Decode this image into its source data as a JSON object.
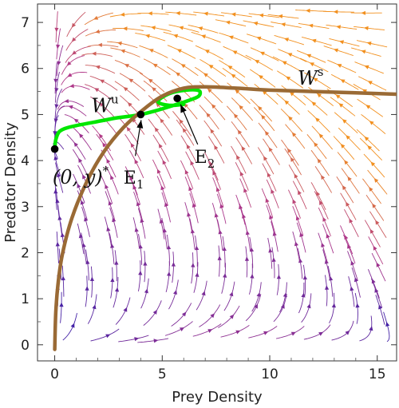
{
  "chart_data": {
    "type": "stream",
    "xlabel": "Prey Density",
    "ylabel": "Predator Density",
    "xlim": [
      -0.8,
      15.9
    ],
    "ylim": [
      -0.35,
      7.4
    ],
    "x_ticks": [
      0,
      5,
      10,
      15
    ],
    "y_ticks": [
      0,
      1,
      2,
      3,
      4,
      5,
      6,
      7
    ],
    "frame": true,
    "grid": false,
    "colors": {
      "stream_slow": "#3a1fa8",
      "stream_mid": "#b0388a",
      "stream_fast": "#f2901f",
      "unstable_manifold": "#00e600",
      "stable_manifold": "#9a6a35",
      "points": "#000000"
    },
    "points": [
      {
        "label": "(0,y*)",
        "x": 0.0,
        "y": 4.25
      },
      {
        "label": "E1",
        "x": 4.0,
        "y": 5.0
      },
      {
        "label": "E2",
        "x": 5.7,
        "y": 5.35
      }
    ],
    "annotations": {
      "wu": {
        "base": "W",
        "sup": "u"
      },
      "ws": {
        "base": "W",
        "sup": "s"
      },
      "e1": {
        "base": "E",
        "sub": "1"
      },
      "e2": {
        "base": "E",
        "sub": "2"
      },
      "zero": {
        "text": "(0, y)",
        "sup": "*"
      }
    },
    "series": [
      {
        "id": "unstable-manifold",
        "x": [
          0.0,
          0.05,
          0.2,
          0.5,
          1.0,
          1.8,
          2.8,
          3.6,
          4.0,
          4.6,
          5.4,
          6.2,
          6.7,
          6.7,
          6.1,
          5.3,
          4.8,
          5.3,
          6.0
        ],
        "y": [
          4.25,
          4.45,
          4.62,
          4.7,
          4.76,
          4.83,
          4.92,
          4.97,
          5.0,
          5.07,
          5.18,
          5.3,
          5.4,
          5.52,
          5.53,
          5.45,
          5.28,
          5.2,
          5.22
        ]
      },
      {
        "id": "stable-manifold",
        "x": [
          0.0,
          0.05,
          0.15,
          0.35,
          0.8,
          1.5,
          2.3,
          3.2,
          4.1,
          5.0,
          6.0,
          7.0,
          8.5,
          10.0,
          12.0,
          14.0,
          15.9
        ],
        "y": [
          -0.1,
          0.7,
          1.3,
          1.95,
          2.75,
          3.55,
          4.2,
          4.72,
          5.1,
          5.4,
          5.57,
          5.6,
          5.57,
          5.53,
          5.5,
          5.47,
          5.44
        ]
      }
    ]
  }
}
